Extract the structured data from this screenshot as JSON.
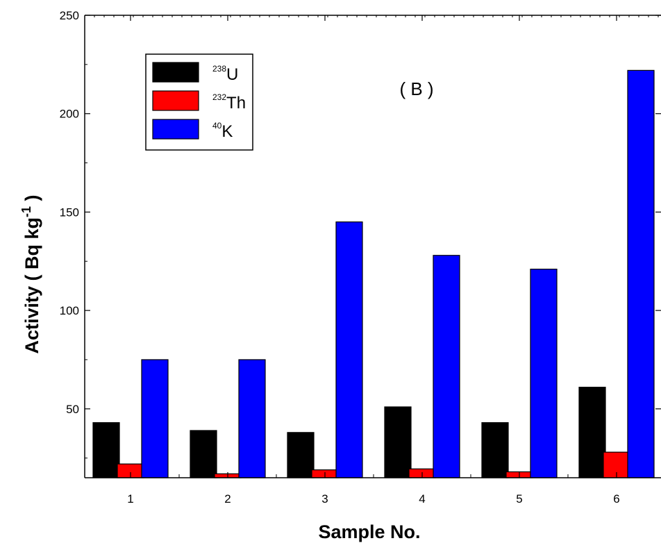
{
  "chart_data": {
    "type": "bar",
    "title": "",
    "xlabel": "Sample No.",
    "ylabel": {
      "prefix": "Activity ( Bq kg",
      "exponent": "-1",
      "suffix": " )"
    },
    "annotation": "( B )",
    "categories": [
      "1",
      "2",
      "3",
      "4",
      "5",
      "6"
    ],
    "series": [
      {
        "isotope": "U",
        "mass": "238",
        "color": "#000000",
        "values": [
          43,
          39,
          38,
          51,
          43,
          61
        ]
      },
      {
        "isotope": "Th",
        "mass": "232",
        "color": "#ff0000",
        "values": [
          22,
          17,
          19,
          19.5,
          18,
          28
        ]
      },
      {
        "isotope": "K",
        "mass": "40",
        "color": "#0000ff",
        "values": [
          75,
          75,
          145,
          128,
          121,
          222
        ]
      }
    ],
    "ylim": [
      15,
      250
    ],
    "yticks": [
      50,
      100,
      150,
      200,
      250
    ],
    "grid": false,
    "legend_placement": "top-left"
  }
}
